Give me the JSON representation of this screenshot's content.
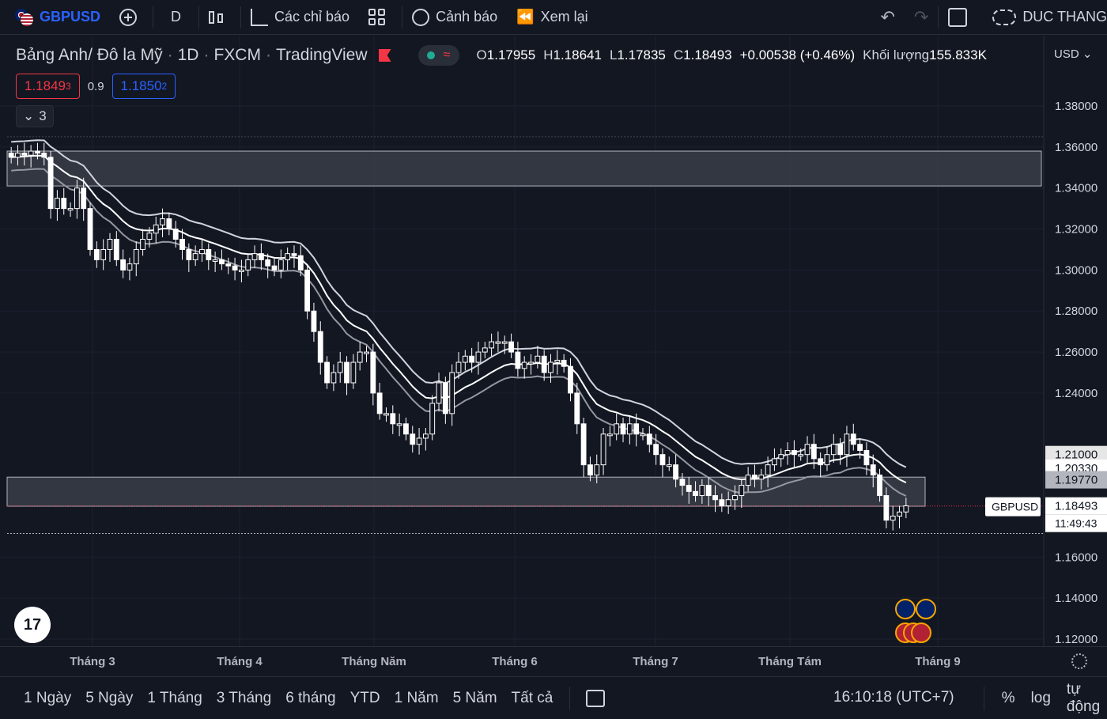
{
  "toolbar": {
    "symbol": "GBPUSD",
    "interval": "D",
    "indicators_label": "Các chỉ báo",
    "alerts_label": "Cảnh báo",
    "replay_label": "Xem lại",
    "user_label": "DUC THANG"
  },
  "legend": {
    "title": "Bảng Anh/ Đô la Mỹ",
    "interval": "1D",
    "exchange": "FXCM",
    "source": "TradingView",
    "open_label": "O",
    "open": "1.17955",
    "high_label": "H",
    "high": "1.18641",
    "low_label": "L",
    "low": "1.17835",
    "close_label": "C",
    "close": "1.18493",
    "change": "+0.00538 (+0.46%)",
    "volume_label": "Khối lượng",
    "volume": "155.833K"
  },
  "quote": {
    "sell_main": "1.1849",
    "sell_sup": "3",
    "spread": "0.9",
    "buy_main": "1.1850",
    "buy_sup": "2",
    "collapse_count": "3"
  },
  "price_axis": {
    "currency": "USD",
    "ticks": [
      "1.38000",
      "1.36000",
      "1.34000",
      "1.32000",
      "1.30000",
      "1.28000",
      "1.26000",
      "1.24000",
      "1.16000",
      "1.14000",
      "1.12000"
    ],
    "badges": {
      "upper_band": "1.21000",
      "mid_band": "1.20330",
      "lower_band": "1.19770",
      "symbol_tag": "GBPUSD",
      "last_price": "1.18493",
      "countdown": "11:49:43"
    }
  },
  "time_axis": {
    "labels": [
      "Tháng 3",
      "Tháng 4",
      "Tháng Năm",
      "Tháng 6",
      "Tháng 7",
      "Tháng Tám",
      "Tháng 9"
    ]
  },
  "bottom": {
    "ranges": [
      "1 Ngày",
      "5 Ngày",
      "1 Tháng",
      "3 Tháng",
      "6 tháng",
      "YTD",
      "1 Năm",
      "5 Năm",
      "Tất cả"
    ],
    "clock": "16:10:18 (UTC+7)",
    "percent": "%",
    "log": "log",
    "auto": "tự động"
  },
  "colors": {
    "background": "#131722",
    "candle": "#ffffff",
    "sell": "#f23645",
    "buy": "#2962ff",
    "zone": "#3a3d48"
  },
  "icons": [
    "flag-icon",
    "add-symbol-icon",
    "candle-type-icon",
    "indicators-icon",
    "layout-grid-icon",
    "alarm-icon",
    "replay-icon",
    "undo-icon",
    "redo-icon",
    "fullscreen-icon",
    "cloud-icon",
    "calendar-icon",
    "gear-icon",
    "tradingview-logo-icon"
  ],
  "chart_data": {
    "type": "candlestick",
    "symbol": "GBPUSD",
    "timeframe": "1D",
    "ylim": [
      1.11,
      1.4
    ],
    "x_labels": [
      "Tháng 3",
      "Tháng 4",
      "Tháng Năm",
      "Tháng 6",
      "Tháng 7",
      "Tháng Tám",
      "Tháng 9"
    ],
    "last": {
      "open": 1.17955,
      "high": 1.18641,
      "low": 1.17835,
      "close": 1.18493
    },
    "zones": [
      {
        "from": 1.341,
        "to": 1.358
      },
      {
        "from": 1.1848,
        "to": 1.199
      }
    ],
    "bands": {
      "upper": 1.21,
      "middle": 1.2033,
      "lower": 1.1977
    },
    "close_path": [
      1.355,
      1.357,
      1.356,
      1.358,
      1.357,
      1.355,
      1.33,
      1.335,
      1.33,
      1.33,
      1.34,
      1.33,
      1.31,
      1.305,
      1.31,
      1.315,
      1.305,
      1.3,
      1.303,
      1.31,
      1.315,
      1.318,
      1.322,
      1.325,
      1.32,
      1.315,
      1.31,
      1.305,
      1.308,
      1.31,
      1.305,
      1.305,
      1.303,
      1.302,
      1.3,
      1.3,
      1.305,
      1.308,
      1.305,
      1.302,
      1.3,
      1.305,
      1.308,
      1.307,
      1.3,
      1.28,
      1.27,
      1.255,
      1.245,
      1.25,
      1.255,
      1.245,
      1.255,
      1.26,
      1.26,
      1.24,
      1.23,
      1.23,
      1.225,
      1.225,
      1.22,
      1.215,
      1.218,
      1.22,
      1.235,
      1.245,
      1.23,
      1.25,
      1.255,
      1.258,
      1.255,
      1.26,
      1.262,
      1.265,
      1.265,
      1.265,
      1.26,
      1.252,
      1.255,
      1.255,
      1.258,
      1.25,
      1.255,
      1.256,
      1.253,
      1.24,
      1.225,
      1.205,
      1.2,
      1.205,
      1.22,
      1.22,
      1.225,
      1.22,
      1.225,
      1.22,
      1.22,
      1.215,
      1.21,
      1.205,
      1.205,
      1.198,
      1.195,
      1.192,
      1.19,
      1.195,
      1.19,
      1.188,
      1.185,
      1.188,
      1.19,
      1.195,
      1.2,
      1.198,
      1.2,
      1.205,
      1.208,
      1.21,
      1.212,
      1.21,
      1.21,
      1.215,
      1.208,
      1.205,
      1.21,
      1.215,
      1.21,
      1.22,
      1.215,
      1.212,
      1.205,
      1.2,
      1.19,
      1.178,
      1.18,
      1.182,
      1.185
    ]
  }
}
